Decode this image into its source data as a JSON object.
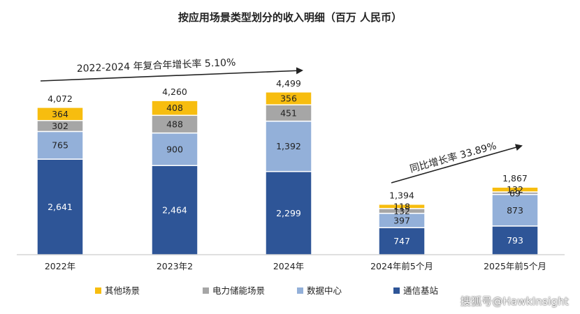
{
  "chart_data": {
    "type": "bar",
    "stacked": true,
    "title": "按应用场景类型划分的收入明细（百万 人民币）",
    "categories": [
      "2022年",
      "2023年2",
      "2024年",
      "2024年前5个月",
      "2025年前5个月"
    ],
    "series": [
      {
        "name": "通信基站",
        "color": "#2e5597",
        "values": [
          2641,
          2464,
          2299,
          747,
          793
        ]
      },
      {
        "name": "数据中心",
        "color": "#93b0d9",
        "values": [
          765,
          900,
          1392,
          397,
          873
        ]
      },
      {
        "name": "电力储能场景",
        "color": "#a6a6a6",
        "values": [
          302,
          488,
          451,
          132,
          69
        ]
      },
      {
        "name": "其他场景",
        "color": "#f7bd0f",
        "values": [
          364,
          408,
          356,
          118,
          132
        ]
      }
    ],
    "totals": [
      "4,072",
      "4,260",
      "4,499",
      "1,394",
      "1,867"
    ],
    "value_labels": [
      [
        "2,641",
        "2,464",
        "2,299",
        "747",
        "793"
      ],
      [
        "765",
        "900",
        "1,392",
        "397",
        "873"
      ],
      [
        "302",
        "488",
        "451",
        "132",
        "69"
      ],
      [
        "364",
        "408",
        "356",
        "118",
        "132"
      ]
    ],
    "annotations": [
      {
        "text": "2022-2024 年复合年增长率 5.10%"
      },
      {
        "text": "同比增长率 33.89%"
      }
    ],
    "legend_order": [
      "其他场景",
      "电力储能场景",
      "数据中心",
      "通信基站"
    ],
    "legend_position": "bottom",
    "ylim": [
      0,
      4800
    ],
    "grid": false
  },
  "watermark": "搜狐号@HawkInsight"
}
